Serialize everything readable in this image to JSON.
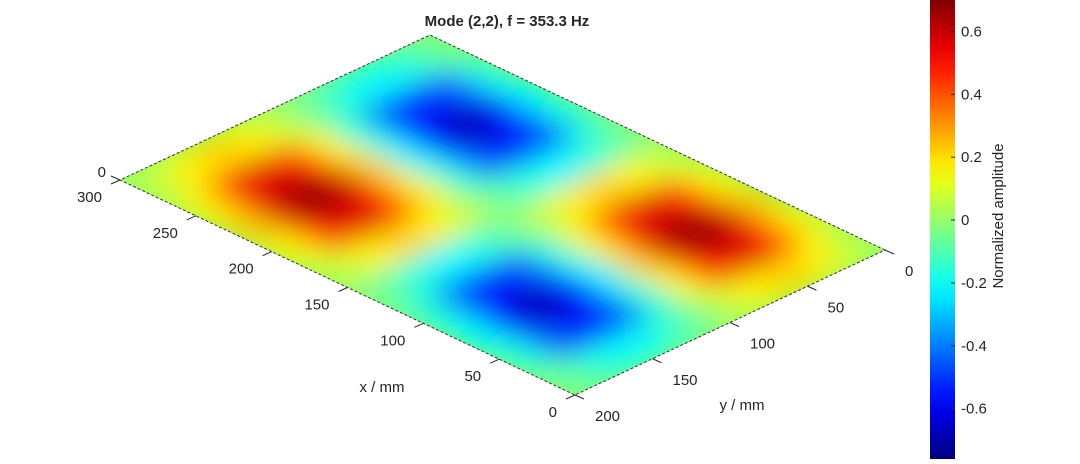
{
  "chart_data": {
    "type": "surface",
    "title": "Mode (2,2),  f = 353.3 Hz",
    "x_label": "x / mm",
    "y_label": "y / mm",
    "colorbar_label": "Normalized amplitude",
    "xlim": [
      0,
      300
    ],
    "ylim": [
      0,
      200
    ],
    "xticks": [
      0,
      50,
      100,
      150,
      200,
      250,
      300
    ],
    "yticks": [
      0,
      50,
      100,
      150,
      200
    ],
    "zticks": [
      0
    ],
    "clim": [
      -0.76,
      0.7
    ],
    "cticks": [
      -0.6,
      -0.4,
      -0.2,
      0,
      0.2,
      0.4,
      0.6
    ],
    "colormap": "jet",
    "x": [
      15,
      45,
      75,
      105,
      135,
      165,
      195,
      225,
      255,
      285
    ],
    "y": [
      10,
      30,
      50,
      70,
      90,
      110,
      130,
      150,
      170,
      190
    ],
    "z": [
      [
        0.07,
        0.17,
        0.22,
        0.17,
        0.07,
        -0.07,
        -0.17,
        -0.22,
        -0.17,
        -0.07
      ],
      [
        0.17,
        0.46,
        0.57,
        0.46,
        0.17,
        -0.17,
        -0.46,
        -0.57,
        -0.46,
        -0.17
      ],
      [
        0.22,
        0.57,
        0.7,
        0.57,
        0.22,
        -0.22,
        -0.57,
        -0.7,
        -0.57,
        -0.22
      ],
      [
        0.17,
        0.46,
        0.57,
        0.46,
        0.17,
        -0.17,
        -0.46,
        -0.57,
        -0.46,
        -0.17
      ],
      [
        0.07,
        0.17,
        0.22,
        0.17,
        0.07,
        -0.07,
        -0.17,
        -0.22,
        -0.17,
        -0.07
      ],
      [
        -0.07,
        -0.17,
        -0.22,
        -0.17,
        -0.07,
        0.07,
        0.17,
        0.22,
        0.17,
        0.07
      ],
      [
        -0.17,
        -0.46,
        -0.57,
        -0.46,
        -0.17,
        0.17,
        0.46,
        0.57,
        0.46,
        0.17
      ],
      [
        -0.22,
        -0.57,
        -0.7,
        -0.57,
        -0.22,
        0.22,
        0.57,
        0.7,
        0.57,
        0.22
      ],
      [
        -0.17,
        -0.46,
        -0.57,
        -0.46,
        -0.17,
        0.17,
        0.46,
        0.57,
        0.46,
        0.17
      ],
      [
        -0.07,
        -0.17,
        -0.22,
        -0.17,
        -0.07,
        0.07,
        0.17,
        0.22,
        0.17,
        0.07
      ]
    ]
  }
}
